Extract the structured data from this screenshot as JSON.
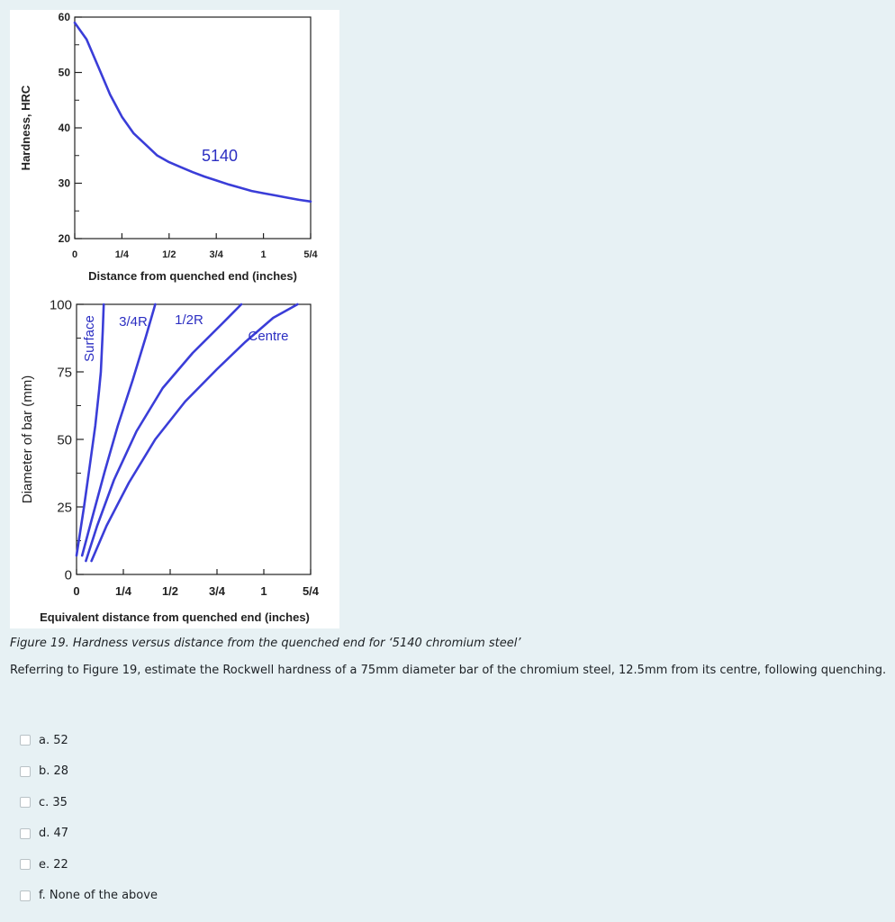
{
  "figure": {
    "charts": [
      {
        "type": "line",
        "ylabel": "Hardness, HRC",
        "xlabel": "Distance from quenched end (inches)",
        "xticks": [
          "0",
          "1/4",
          "1/2",
          "3/4",
          "1",
          "5/4"
        ],
        "yticks": [
          "60",
          "50",
          "40",
          "30",
          "20"
        ],
        "xlim": [
          0,
          1.25
        ],
        "ylim": [
          20,
          60
        ],
        "series": [
          {
            "name": "5140",
            "color": "#3a3dd8",
            "x": [
              0,
              0.0625,
              0.125,
              0.1875,
              0.25,
              0.3125,
              0.375,
              0.4375,
              0.5,
              0.5625,
              0.625,
              0.6875,
              0.75,
              0.8125,
              0.875,
              0.9375,
              1.0,
              1.0625,
              1.125,
              1.1875,
              1.25
            ],
            "y": [
              59,
              56,
              51,
              46,
              42,
              39,
              37,
              35,
              33.8,
              32.9,
              32.0,
              31.2,
              30.5,
              29.8,
              29.2,
              28.6,
              28.2,
              27.8,
              27.4,
              27.0,
              26.7
            ]
          }
        ]
      },
      {
        "type": "line",
        "ylabel": "Diameter of bar (mm)",
        "xlabel": "Equivalent distance from quenched end (inches)",
        "xticks": [
          "0",
          "1/4",
          "1/2",
          "3/4",
          "1",
          "5/4"
        ],
        "yticks": [
          "100",
          "75",
          "50",
          "25",
          "0"
        ],
        "xlim": [
          0,
          1.25
        ],
        "ylim": [
          0,
          100
        ],
        "series": [
          {
            "name": "Surface",
            "color": "#3a3dd8",
            "x": [
              0.0,
              0.04,
              0.07,
              0.1,
              0.12,
              0.13,
              0.14,
              0.145
            ],
            "y": [
              7,
              25,
              40,
              55,
              68,
              75,
              90,
              100
            ]
          },
          {
            "name": "3/4R",
            "color": "#3a3dd8",
            "x": [
              0.03,
              0.08,
              0.15,
              0.22,
              0.3,
              0.37,
              0.42
            ],
            "y": [
              7,
              20,
              38,
              55,
              72,
              88,
              100
            ]
          },
          {
            "name": "1/2R",
            "color": "#3a3dd8",
            "x": [
              0.05,
              0.11,
              0.2,
              0.32,
              0.46,
              0.62,
              0.78,
              0.88
            ],
            "y": [
              5,
              18,
              35,
              53,
              69,
              82,
              93,
              100
            ]
          },
          {
            "name": "Centre",
            "color": "#3a3dd8",
            "x": [
              0.08,
              0.16,
              0.28,
              0.42,
              0.58,
              0.75,
              0.9,
              1.05,
              1.18
            ],
            "y": [
              5,
              18,
              34,
              50,
              64,
              76,
              86,
              95,
              100
            ]
          }
        ]
      }
    ],
    "top_label": "5140",
    "label_surface": "Surface",
    "label_34r": "3/4R",
    "label_12r": "1/2R",
    "label_centre": "Centre"
  },
  "caption": "Figure 19. Hardness versus distance from the quenched end for ‘5140 chromium steel’",
  "question": "Referring to Figure 19, estimate the Rockwell hardness of a 75mm diameter bar of the chromium steel, 12.5mm from its centre, following quenching.",
  "options": [
    {
      "label": "a. 52"
    },
    {
      "label": "b. 28"
    },
    {
      "label": "c. 35"
    },
    {
      "label": "d. 47"
    },
    {
      "label": "e. 22"
    },
    {
      "label": "f. None of the above"
    }
  ],
  "colors": {
    "accent": "#3a3dd8",
    "page_bg": "#e7f1f4",
    "text": "#1d2125"
  }
}
